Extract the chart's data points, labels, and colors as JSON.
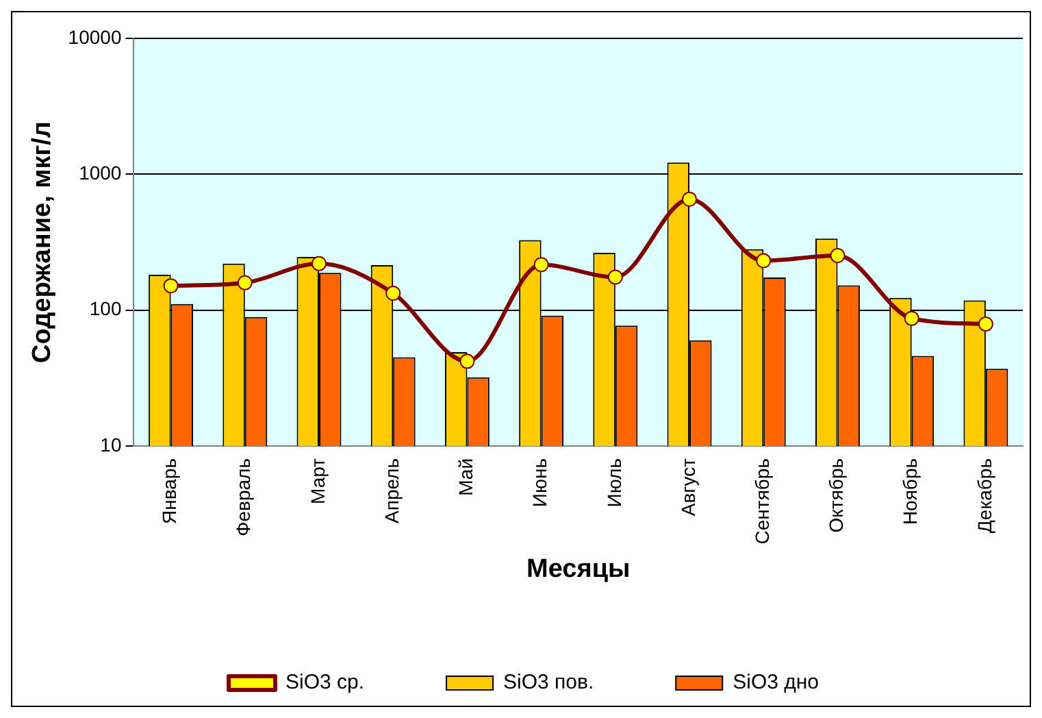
{
  "chart_data": {
    "type": "bar",
    "xlabel": "Месяцы",
    "ylabel": "Содержание, мкг/л",
    "categories": [
      "Январь",
      "Февраль",
      "Март",
      "Апрель",
      "Май",
      "Июнь",
      "Июль",
      "Август",
      "Сентябрь",
      "Октябрь",
      "Ноябрь",
      "Декабрь"
    ],
    "series": [
      {
        "name": "SiO3 пов.",
        "color": "#ffcc00",
        "values": [
          182,
          220,
          246,
          214,
          49,
          327,
          264,
          1220,
          281,
          336,
          123,
          118
        ]
      },
      {
        "name": "SiO3 дно",
        "color": "#ff6600",
        "values": [
          111,
          89,
          188,
          45,
          32,
          91,
          77,
          60,
          174,
          152,
          46,
          37
        ]
      },
      {
        "name": "SiO3 ср.",
        "type": "line",
        "color": "#800000",
        "marker": "circle",
        "values": [
          151,
          159,
          220,
          133,
          42,
          216,
          175,
          655,
          231,
          252,
          87,
          79
        ]
      }
    ],
    "log": "y",
    "ylim": [
      10,
      10000
    ],
    "yticks": [
      10,
      100,
      1000,
      10000
    ],
    "grid": "y",
    "legend": "bottom"
  }
}
